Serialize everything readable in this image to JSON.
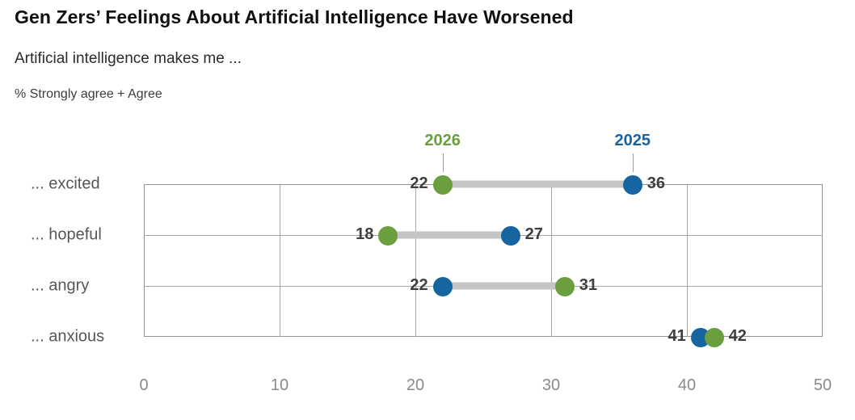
{
  "header": {
    "title": "Gen Zers’ Feelings About Artificial Intelligence Have Worsened",
    "subtitle": "Artificial intelligence makes me ...",
    "note": "% Strongly agree + Agree"
  },
  "chart_data": {
    "type": "scatter",
    "variant": "dumbbell",
    "title": "Gen Zers’ Feelings About Artificial Intelligence Have Worsened",
    "subtitle": "Artificial intelligence makes me ...",
    "units_note": "% Strongly agree + Agree",
    "categories": [
      "... excited",
      "... hopeful",
      "... angry",
      "... anxious"
    ],
    "series": [
      {
        "name": "2026",
        "color": "#6a9e3e",
        "values": [
          22,
          18,
          31,
          42
        ]
      },
      {
        "name": "2025",
        "color": "#1664a0",
        "values": [
          36,
          27,
          22,
          41
        ]
      }
    ],
    "xlim": [
      0,
      50
    ],
    "xticks": [
      0,
      10,
      20,
      30,
      40,
      50
    ],
    "grid": true,
    "legend_position": "top",
    "colors": {
      "connector": "#c5c5c5",
      "value_label": "#3f3f3f",
      "axis_label": "#8a8a8a",
      "category_label": "#565656",
      "grid_line": "#a6a6a6",
      "plot_border": "#929292",
      "legend_tick": "#9e9e9e"
    }
  }
}
